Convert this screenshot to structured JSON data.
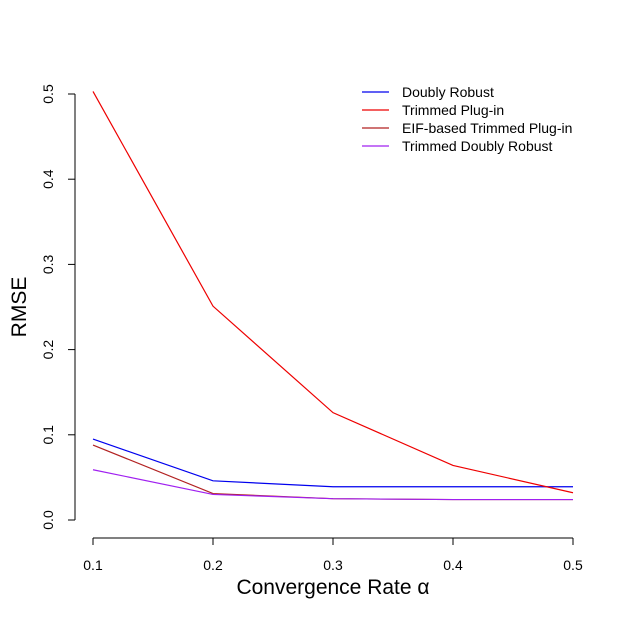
{
  "chart_data": {
    "type": "line",
    "title": "",
    "xlabel": "Convergence Rate α",
    "ylabel": "RMSE",
    "x": [
      0.1,
      0.2,
      0.3,
      0.4,
      0.5
    ],
    "x_tick_labels": [
      "0.1",
      "0.2",
      "0.3",
      "0.4",
      "0.5"
    ],
    "y_ticks": [
      0.0,
      0.1,
      0.2,
      0.3,
      0.4,
      0.5
    ],
    "y_tick_labels": [
      "0.0",
      "0.1",
      "0.2",
      "0.3",
      "0.4",
      "0.5"
    ],
    "xlim": [
      0.1,
      0.5
    ],
    "ylim": [
      0.0,
      0.5
    ],
    "grid": false,
    "legend_position": "top-right",
    "series": [
      {
        "name": "Doubly Robust",
        "color": "#0000ee",
        "values": [
          0.095,
          0.046,
          0.039,
          0.039,
          0.039
        ]
      },
      {
        "name": "Trimmed Plug-in",
        "color": "#ee0000",
        "values": [
          0.503,
          0.251,
          0.126,
          0.064,
          0.032
        ]
      },
      {
        "name": "EIF-based Trimmed Plug-in",
        "color": "#b22222",
        "values": [
          0.088,
          0.031,
          0.025,
          0.024,
          0.024
        ]
      },
      {
        "name": "Trimmed Doubly Robust",
        "color": "#a020f0",
        "values": [
          0.059,
          0.03,
          0.025,
          0.024,
          0.024
        ]
      }
    ]
  }
}
